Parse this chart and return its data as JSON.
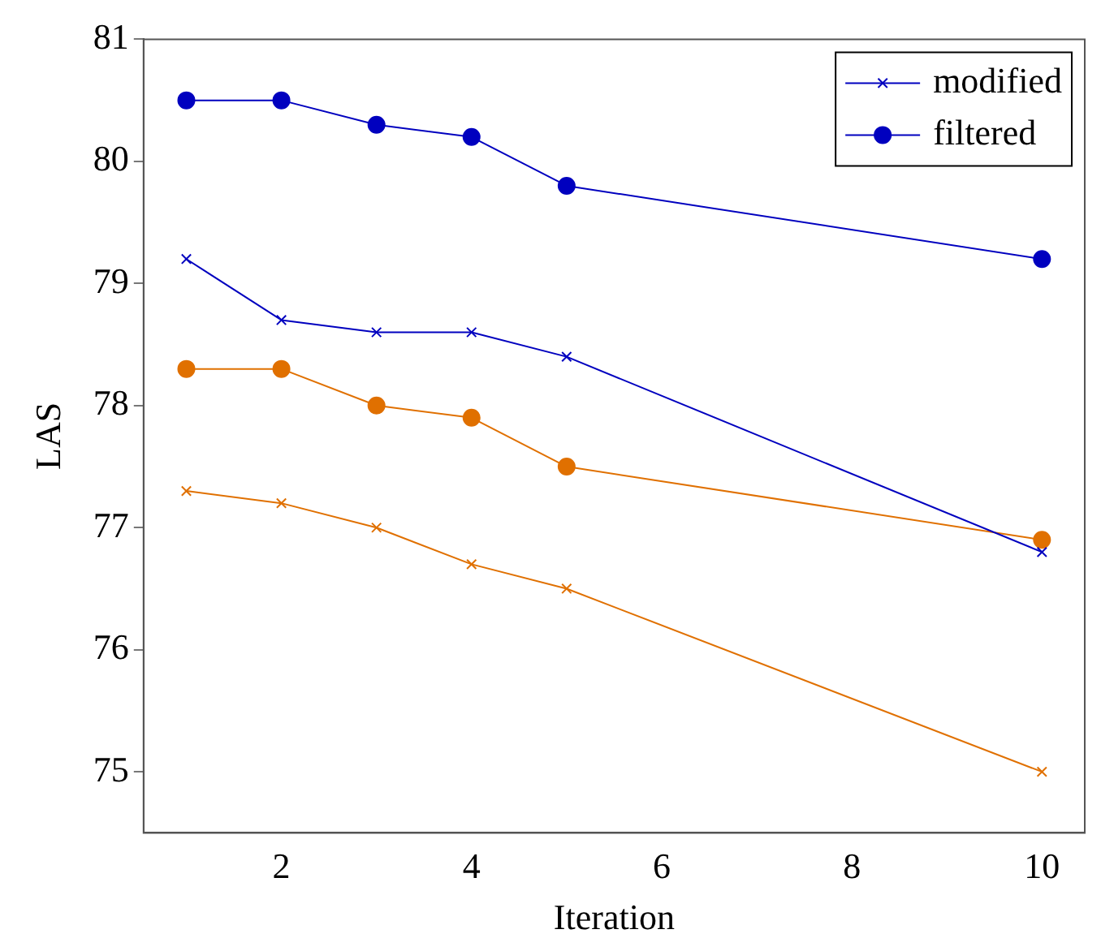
{
  "chart_data": {
    "type": "line",
    "xlabel": "Iteration",
    "ylabel": "LAS",
    "xlim": [
      0.55,
      10.45
    ],
    "xticks": [
      2,
      4,
      6,
      8,
      10
    ],
    "ylim": [
      74.5,
      81
    ],
    "yticks": [
      75,
      76,
      77,
      78,
      79,
      80,
      81
    ],
    "grid": false,
    "legend": "top right",
    "line_style": "solid",
    "series": [
      {
        "name": "modified",
        "color": "#0000bf",
        "marker": "cross",
        "x": [
          1,
          2,
          3,
          4,
          5,
          10
        ],
        "values": [
          79.2,
          78.7,
          78.6,
          78.6,
          78.4,
          76.8
        ]
      },
      {
        "name": "filtered",
        "color": "#0000bf",
        "marker": "circle",
        "x": [
          1,
          2,
          3,
          4,
          5,
          10
        ],
        "values": [
          80.5,
          80.5,
          80.3,
          80.2,
          79.8,
          79.2
        ]
      },
      {
        "color": "#e07000",
        "marker": "cross",
        "x": [
          1,
          2,
          3,
          4,
          5,
          10
        ],
        "values": [
          77.3,
          77.2,
          77.0,
          76.7,
          76.5,
          75.0
        ]
      },
      {
        "color": "#e07000",
        "marker": "circle",
        "x": [
          1,
          2,
          3,
          4,
          5,
          10
        ],
        "values": [
          78.3,
          78.3,
          78.0,
          77.9,
          77.5,
          76.9
        ]
      }
    ]
  }
}
